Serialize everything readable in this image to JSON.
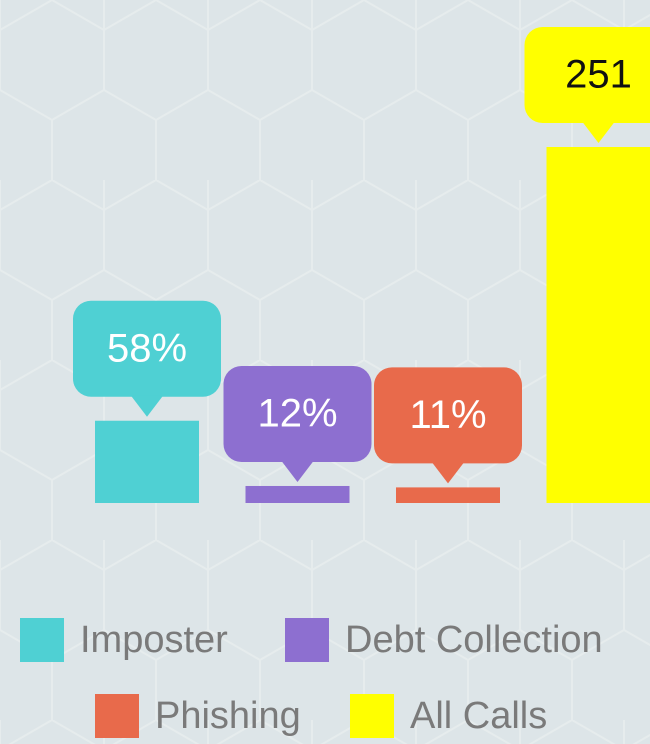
{
  "chart_data": {
    "type": "bar",
    "categories": [
      "Imposter",
      "Debt Collection",
      "Phishing",
      "All Calls"
    ],
    "values": [
      58,
      12,
      11,
      251
    ],
    "value_labels": [
      "58%",
      "12%",
      "11%",
      "251"
    ],
    "colors": [
      "#4fd0d3",
      "#8d6fd0",
      "#e86a4b",
      "#ffff00"
    ],
    "ylim": [
      0,
      251
    ]
  }
}
